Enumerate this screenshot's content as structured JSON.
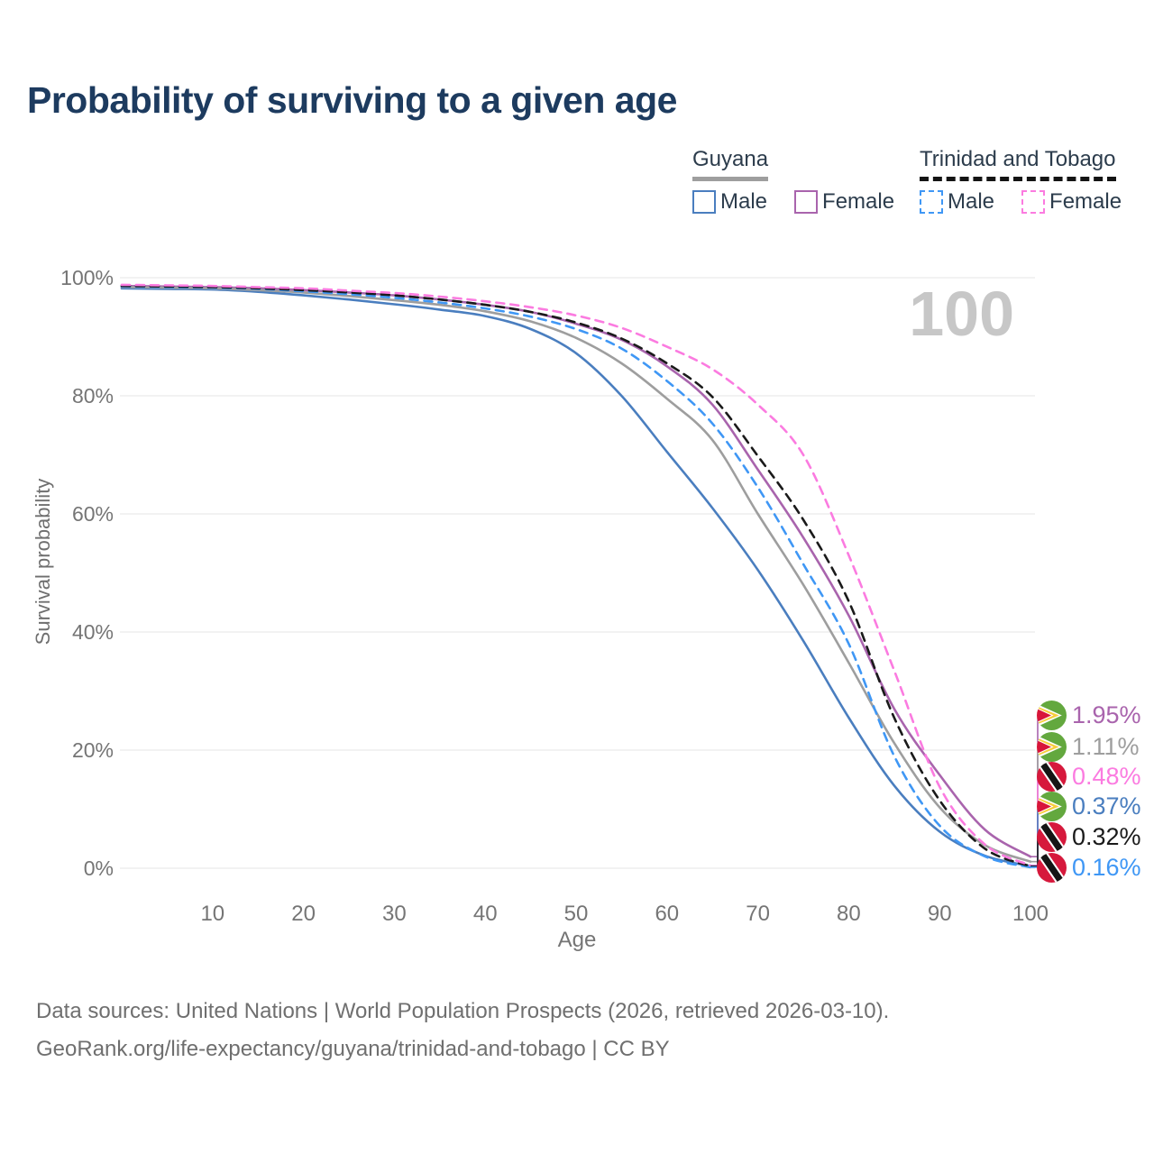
{
  "title": "Probability of surviving to a given age",
  "watermark": "100",
  "legend": {
    "groups": [
      {
        "name": "Guyana",
        "underline_style": "solid",
        "underline_color": "#9e9e9e",
        "items": [
          {
            "label": "Male",
            "color": "#4a7ebf",
            "dash": false
          },
          {
            "label": "Female",
            "color": "#a964ad",
            "dash": false
          }
        ]
      },
      {
        "name": "Trinidad and Tobago",
        "underline_style": "dashed",
        "underline_color": "#141414",
        "items": [
          {
            "label": "Male",
            "color": "#3f97f5",
            "dash": true
          },
          {
            "label": "Female",
            "color": "#fb7be0",
            "dash": true
          }
        ]
      }
    ]
  },
  "chart_data": {
    "type": "line",
    "title": "Probability of surviving to a given age",
    "xlabel": "Age",
    "ylabel": "Survival probability",
    "xlim": [
      0,
      100
    ],
    "ylim": [
      0,
      100
    ],
    "grid": true,
    "x": [
      0,
      5,
      10,
      15,
      20,
      25,
      30,
      35,
      40,
      45,
      50,
      55,
      60,
      65,
      70,
      75,
      80,
      85,
      90,
      95,
      100
    ],
    "xticks": [
      10,
      20,
      30,
      40,
      50,
      60,
      70,
      80,
      90,
      100
    ],
    "yticks": [
      {
        "value": 0,
        "label": "0%"
      },
      {
        "value": 20,
        "label": "20%"
      },
      {
        "value": 40,
        "label": "40%"
      },
      {
        "value": 60,
        "label": "60%"
      },
      {
        "value": 80,
        "label": "80%"
      },
      {
        "value": 100,
        "label": "100%"
      }
    ],
    "series": [
      {
        "name": "Guyana Male",
        "color": "#4a7ebf",
        "dash": "solid",
        "values": [
          98.2,
          98.1,
          98.0,
          97.6,
          97.0,
          96.3,
          95.5,
          94.6,
          93.5,
          91.3,
          87.2,
          80.0,
          70.5,
          61.0,
          50.5,
          38.5,
          25.5,
          14.0,
          6.2,
          2.1,
          0.37
        ]
      },
      {
        "name": "Guyana Female",
        "color": "#a964ad",
        "dash": "solid",
        "values": [
          98.6,
          98.5,
          98.4,
          98.2,
          97.9,
          97.5,
          97.0,
          96.3,
          95.4,
          94.2,
          92.2,
          89.5,
          85.0,
          78.5,
          67.5,
          56.0,
          42.8,
          27.0,
          15.8,
          6.5,
          1.95
        ]
      },
      {
        "name": "Guyana Both sexes",
        "color": "#9e9e9e",
        "dash": "solid",
        "values": [
          98.4,
          98.3,
          98.2,
          97.9,
          97.5,
          96.9,
          96.2,
          95.4,
          94.3,
          92.6,
          89.8,
          85.5,
          79.5,
          72.5,
          60.0,
          48.0,
          34.8,
          21.2,
          10.3,
          3.9,
          1.11
        ]
      },
      {
        "name": "Trinidad and Tobago Male",
        "color": "#3f97f5",
        "dash": "dashed",
        "values": [
          98.5,
          98.4,
          98.3,
          98.1,
          97.7,
          97.2,
          96.6,
          95.8,
          94.8,
          93.4,
          91.3,
          88.0,
          82.5,
          75.3,
          64.5,
          51.5,
          38.0,
          19.0,
          7.2,
          2.0,
          0.16
        ]
      },
      {
        "name": "Trinidad and Tobago Both sexes",
        "color": "#1a1a1a",
        "dash": "dashed",
        "values": [
          98.6,
          98.5,
          98.4,
          98.2,
          97.9,
          97.5,
          97.0,
          96.3,
          95.4,
          94.2,
          92.4,
          89.7,
          85.5,
          79.8,
          69.8,
          59.0,
          45.2,
          25.5,
          11.5,
          3.3,
          0.32
        ]
      },
      {
        "name": "Trinidad and Tobago Female",
        "color": "#fb7be0",
        "dash": "dashed",
        "values": [
          98.8,
          98.7,
          98.6,
          98.4,
          98.2,
          97.8,
          97.4,
          96.8,
          96.0,
          95.0,
          93.6,
          91.5,
          88.3,
          84.5,
          78.5,
          70.0,
          53.0,
          33.5,
          13.8,
          4.0,
          0.48
        ]
      }
    ]
  },
  "end_labels": [
    {
      "flag": "guyana",
      "value": "1.95%",
      "color": "#a964ad",
      "series": "Guyana Female"
    },
    {
      "flag": "guyana",
      "value": "1.11%",
      "color": "#9e9e9e",
      "series": "Guyana Both sexes"
    },
    {
      "flag": "trinidad-and-tobago",
      "value": "0.48%",
      "color": "#fb7be0",
      "series": "Trinidad and Tobago Female"
    },
    {
      "flag": "guyana",
      "value": "0.37%",
      "color": "#4a7ebf",
      "series": "Guyana Male"
    },
    {
      "flag": "trinidad-and-tobago",
      "value": "0.32%",
      "color": "#1a1a1a",
      "series": "Trinidad and Tobago Both sexes"
    },
    {
      "flag": "trinidad-and-tobago",
      "value": "0.16%",
      "color": "#3f97f5",
      "series": "Trinidad and Tobago Male"
    }
  ],
  "footer": {
    "line1": "Data sources: United Nations | World Population Prospects (2026, retrieved 2026-03-10).",
    "line2": "GeoRank.org/life-expectancy/guyana/trinidad-and-tobago | CC BY"
  }
}
